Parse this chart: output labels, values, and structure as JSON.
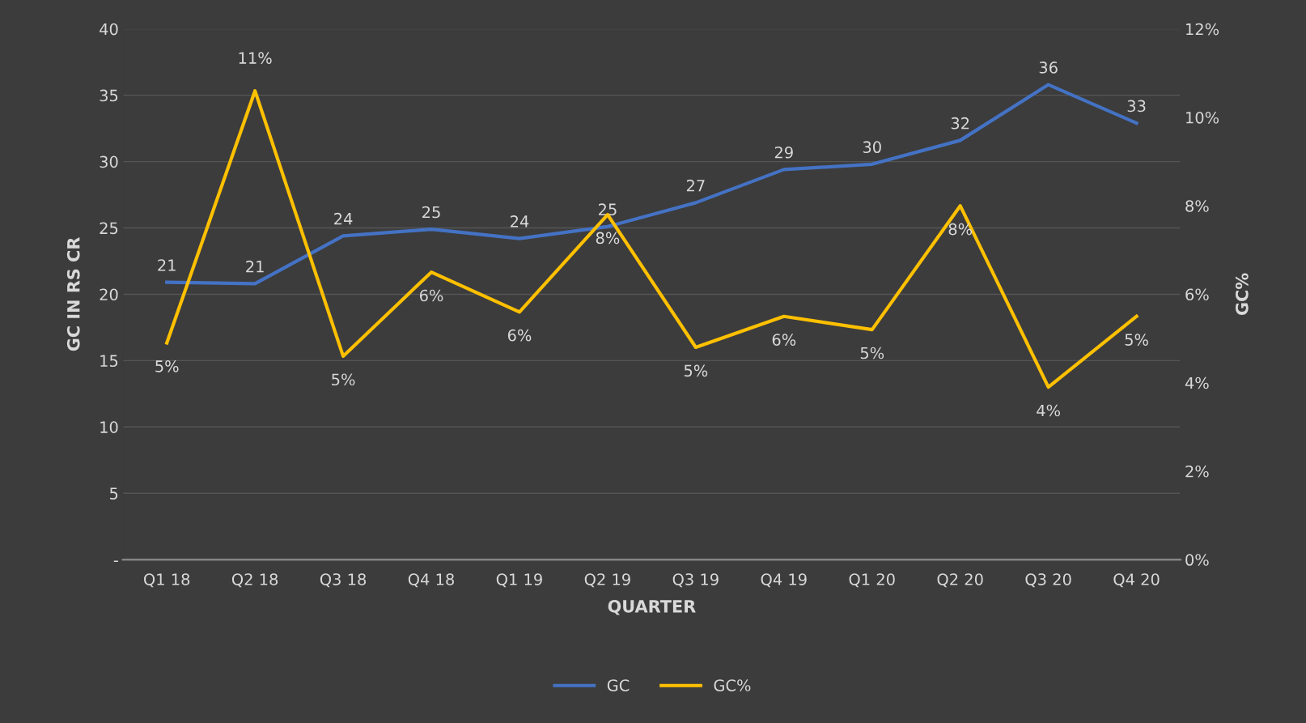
{
  "chart_data": {
    "type": "line",
    "xlabel": "QUARTER",
    "ylabel": "GC IN RS CR",
    "y2label": "GC%",
    "categories": [
      "Q1 18",
      "Q2 18",
      "Q3 18",
      "Q4 18",
      "Q1 19",
      "Q2 19",
      "Q3 19",
      "Q4 19",
      "Q1 20",
      "Q2 20",
      "Q3 20",
      "Q4 20"
    ],
    "series": [
      {
        "name": "GC",
        "color": "#4472c4",
        "values": [
          20.9,
          20.8,
          24.4,
          24.9,
          24.2,
          25.1,
          26.9,
          29.4,
          29.8,
          31.6,
          35.8,
          32.9
        ],
        "value_labels": [
          "21",
          "21",
          "24",
          "25",
          "24",
          "25",
          "27",
          "29",
          "30",
          "32",
          "36",
          "33"
        ]
      },
      {
        "name": "GC%",
        "color": "#ffc000",
        "axis": "y2",
        "values": [
          4.9,
          10.6,
          4.6,
          6.5,
          5.6,
          7.8,
          4.8,
          5.5,
          5.2,
          8.0,
          3.9,
          5.5
        ],
        "value_labels": [
          "5%",
          "11%",
          "5%",
          "6%",
          "6%",
          "8%",
          "5%",
          "6%",
          "5%",
          "8%",
          "4%",
          "5%"
        ]
      }
    ],
    "ylim": [
      0,
      40
    ],
    "yticks": [
      {
        "value": 0,
        "label": "-"
      },
      5,
      10,
      15,
      20,
      25,
      30,
      35,
      40
    ],
    "y2lim": [
      0,
      12
    ],
    "y2ticks": [
      {
        "value": 0,
        "label": "0%"
      },
      {
        "value": 2,
        "label": "2%"
      },
      {
        "value": 4,
        "label": "4%"
      },
      {
        "value": 6,
        "label": "6%"
      },
      {
        "value": 8,
        "label": "8%"
      },
      {
        "value": 10,
        "label": "10%"
      },
      {
        "value": 12,
        "label": "12%"
      }
    ],
    "grid": "y",
    "legend": "bottom",
    "marker": "none",
    "line_style": "solid"
  }
}
